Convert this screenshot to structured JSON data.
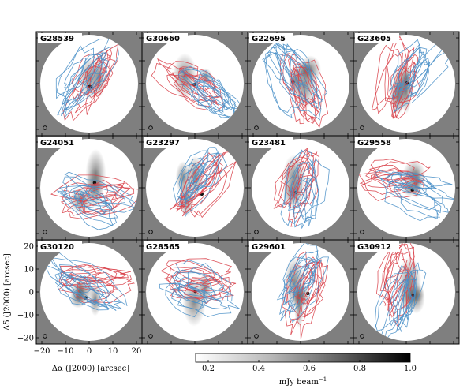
{
  "figure": {
    "panels": [
      {
        "label": "G28539"
      },
      {
        "label": "G30660"
      },
      {
        "label": "G22695"
      },
      {
        "label": "G23605"
      },
      {
        "label": "G24051"
      },
      {
        "label": "G23297"
      },
      {
        "label": "G23481"
      },
      {
        "label": "G29558"
      },
      {
        "label": "G30120"
      },
      {
        "label": "G28565"
      },
      {
        "label": "G29601"
      },
      {
        "label": "G30912"
      }
    ],
    "contour_colors": {
      "red": "#d9424b",
      "blue": "#4a90c8"
    },
    "background_color": "#7f7f7f"
  },
  "chart_data": {
    "type": "heatmap",
    "xlabel": "Δα (J2000)  [arcsec]",
    "ylabel": "Δδ (J2000)  [arcsec]",
    "xlim": [
      -20,
      20
    ],
    "ylim": [
      -20,
      20
    ],
    "x_ticks": [
      "−20",
      "−10",
      "0",
      "10",
      "20"
    ],
    "y_ticks": [
      "20",
      "10",
      "0",
      "−10",
      "−20"
    ],
    "colorbar": {
      "label": "mJy beam",
      "label_exp": "−1",
      "range": [
        0.15,
        1.0
      ],
      "ticks": [
        "0.2",
        "0.4",
        "0.6",
        "0.8",
        "1.0"
      ],
      "tick_values": [
        0.2,
        0.4,
        0.6,
        0.8,
        1.0
      ]
    }
  }
}
